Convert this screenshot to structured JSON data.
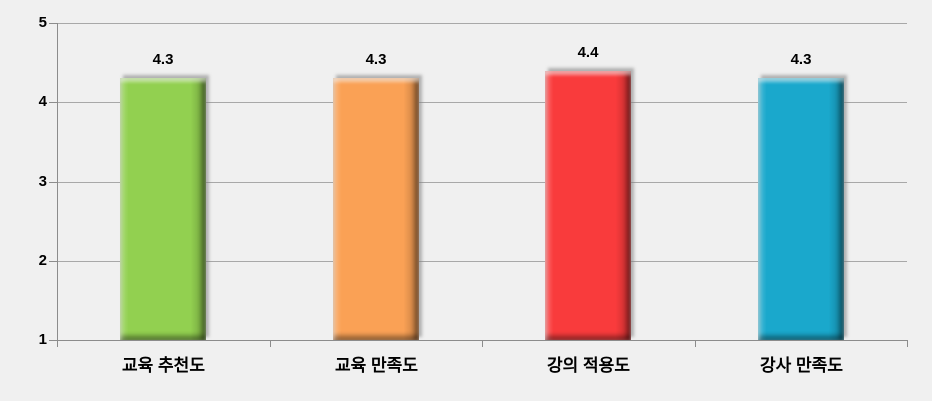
{
  "chart_data": {
    "type": "bar",
    "title": "",
    "xlabel": "",
    "ylabel": "",
    "categories": [
      "교육 추천도",
      "교육 만족도",
      "강의 적용도",
      "강사 만족도"
    ],
    "values": [
      4.3,
      4.3,
      4.4,
      4.3
    ],
    "value_labels": [
      "4.3",
      "4.3",
      "4.4",
      "4.3"
    ],
    "bar_colors": [
      "#92d050",
      "#faa155",
      "#f93b3c",
      "#1aa8cc"
    ],
    "ylim": [
      1,
      5
    ],
    "yticks": [
      "1",
      "2",
      "3",
      "4",
      "5"
    ],
    "grid": true,
    "legend_position": "none",
    "background_color": "#f0f0f0",
    "gridline_color": "#a8a8a8",
    "axis_color": "#8c8c8c",
    "text_color": "#000000",
    "bar_style": "3d-bevel-with-shadow"
  }
}
